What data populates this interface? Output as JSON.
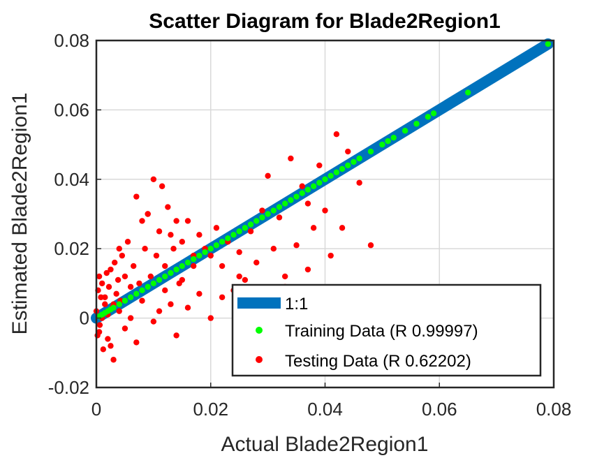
{
  "chart_data": {
    "type": "scatter",
    "title": "Scatter Diagram for Blade2Region1",
    "xlabel": "Actual Blade2Region1",
    "ylabel": "Estimated Blade2Region1",
    "xlim": [
      0,
      0.08
    ],
    "ylim": [
      -0.02,
      0.08
    ],
    "xticks": [
      "0",
      "0.02",
      "0.04",
      "0.06",
      "0.08"
    ],
    "yticks": [
      "-0.02",
      "0",
      "0.02",
      "0.04",
      "0.06",
      "0.08"
    ],
    "grid": true,
    "legend_position": "bottom-right",
    "series": [
      {
        "name": "1:1",
        "kind": "line",
        "color": "#0072BD",
        "x": [
          0,
          0.079
        ],
        "y": [
          0,
          0.079
        ]
      },
      {
        "name": "Training Data (R 0.99997)",
        "kind": "points",
        "color": "#00FF00",
        "x": [
          0.0005,
          0.001,
          0.0015,
          0.002,
          0.0025,
          0.003,
          0.004,
          0.005,
          0.006,
          0.007,
          0.008,
          0.009,
          0.01,
          0.011,
          0.012,
          0.013,
          0.014,
          0.015,
          0.016,
          0.017,
          0.018,
          0.019,
          0.02,
          0.021,
          0.022,
          0.023,
          0.024,
          0.025,
          0.026,
          0.027,
          0.028,
          0.029,
          0.03,
          0.031,
          0.032,
          0.033,
          0.034,
          0.035,
          0.036,
          0.037,
          0.038,
          0.039,
          0.04,
          0.041,
          0.042,
          0.043,
          0.044,
          0.045,
          0.046,
          0.048,
          0.05,
          0.051,
          0.052,
          0.054,
          0.056,
          0.058,
          0.059,
          0.065,
          0.079
        ],
        "y": [
          0.0005,
          0.001,
          0.0015,
          0.002,
          0.0025,
          0.003,
          0.004,
          0.005,
          0.006,
          0.007,
          0.008,
          0.009,
          0.01,
          0.011,
          0.012,
          0.013,
          0.014,
          0.015,
          0.016,
          0.017,
          0.018,
          0.019,
          0.02,
          0.021,
          0.022,
          0.023,
          0.024,
          0.025,
          0.026,
          0.027,
          0.028,
          0.029,
          0.03,
          0.031,
          0.032,
          0.033,
          0.034,
          0.035,
          0.036,
          0.037,
          0.038,
          0.039,
          0.04,
          0.041,
          0.042,
          0.043,
          0.044,
          0.045,
          0.046,
          0.048,
          0.05,
          0.051,
          0.052,
          0.054,
          0.056,
          0.058,
          0.059,
          0.065,
          0.079
        ]
      },
      {
        "name": "Testing Data (R 0.62202)",
        "kind": "points",
        "color": "#FF0000",
        "x": [
          0.0,
          0.0002,
          0.0003,
          0.0005,
          0.0006,
          0.0008,
          0.001,
          0.0012,
          0.0015,
          0.0018,
          0.002,
          0.0022,
          0.0025,
          0.0028,
          0.003,
          0.0032,
          0.0035,
          0.0038,
          0.004,
          0.0042,
          0.0045,
          0.005,
          0.0055,
          0.006,
          0.0065,
          0.007,
          0.0075,
          0.008,
          0.0085,
          0.009,
          0.0095,
          0.01,
          0.0105,
          0.011,
          0.0115,
          0.012,
          0.0125,
          0.013,
          0.0135,
          0.014,
          0.0145,
          0.015,
          0.016,
          0.017,
          0.018,
          0.019,
          0.02,
          0.021,
          0.022,
          0.023,
          0.024,
          0.025,
          0.026,
          0.027,
          0.028,
          0.029,
          0.03,
          0.031,
          0.032,
          0.033,
          0.034,
          0.035,
          0.036,
          0.037,
          0.038,
          0.039,
          0.04,
          0.041,
          0.042,
          0.044,
          0.046,
          0.048,
          0.0005,
          0.001,
          0.0015,
          0.002,
          0.0025,
          0.003,
          0.004,
          0.005,
          0.006,
          0.007,
          0.008,
          0.009,
          0.01,
          0.011,
          0.012,
          0.013,
          0.014,
          0.015,
          0.016,
          0.017,
          0.018,
          0.02,
          0.022,
          0.025,
          0.029,
          0.033,
          0.037,
          0.043
        ],
        "y": [
          0.002,
          -0.005,
          0.008,
          0.012,
          -0.002,
          0.006,
          0.01,
          -0.009,
          0.004,
          0.013,
          -0.006,
          0.009,
          0.014,
          0.003,
          -0.012,
          0.016,
          0.007,
          0.011,
          0.02,
          0.005,
          0.018,
          0.012,
          0.022,
          0.009,
          0.015,
          0.035,
          0.01,
          0.028,
          0.02,
          0.03,
          0.012,
          0.04,
          0.018,
          0.025,
          0.038,
          0.015,
          0.032,
          0.024,
          0.02,
          0.028,
          0.01,
          0.022,
          0.028,
          0.015,
          0.024,
          0.02,
          0.018,
          0.026,
          0.015,
          0.022,
          0.008,
          0.019,
          0.011,
          0.025,
          0.016,
          0.031,
          0.041,
          0.02,
          0.029,
          0.012,
          0.046,
          0.021,
          0.038,
          0.033,
          0.026,
          0.044,
          0.031,
          0.018,
          0.053,
          0.048,
          0.039,
          0.021,
          -0.004,
          0.0,
          0.006,
          0.001,
          -0.008,
          0.004,
          0.002,
          -0.003,
          0.0,
          -0.007,
          0.005,
          0.03,
          -0.001,
          0.002,
          0.008,
          0.004,
          -0.005,
          0.011,
          0.003,
          0.018,
          0.007,
          0.0,
          0.006,
          0.012,
          0.003,
          0.009,
          0.014,
          0.026
        ]
      }
    ],
    "legend": [
      {
        "label": "1:1",
        "kind": "line",
        "color": "#0072BD"
      },
      {
        "label": "Training Data (R 0.99997)",
        "kind": "points",
        "color": "#00FF00"
      },
      {
        "label": "Testing Data (R 0.62202)",
        "kind": "points",
        "color": "#FF0000"
      }
    ]
  }
}
